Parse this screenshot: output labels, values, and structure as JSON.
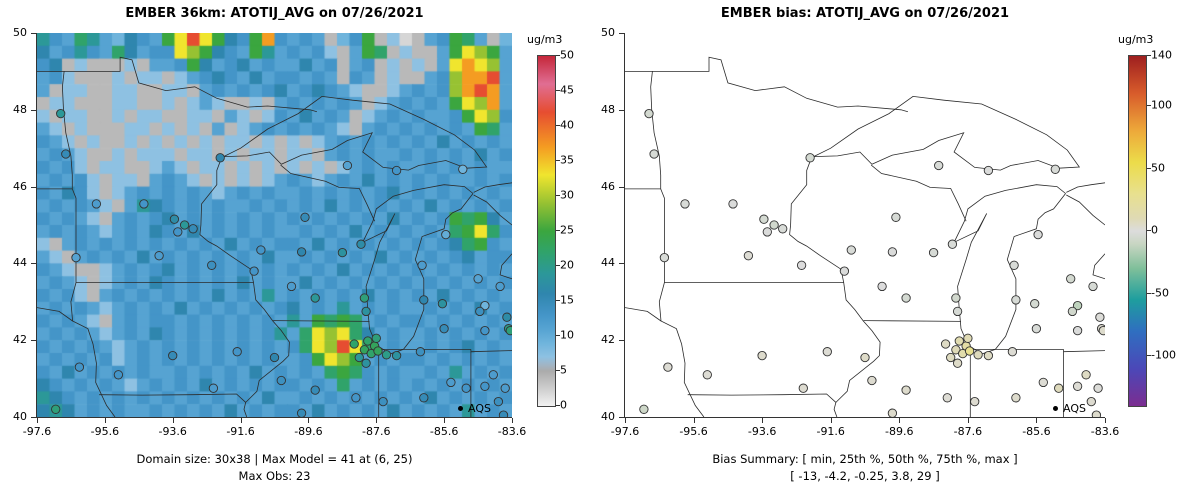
{
  "panels": {
    "left": {
      "title": "EMBER 36km: ATOTIJ_AVG on 07/26/2021",
      "caption1": "Domain size: 30x38 | Max Model = 41 at (6, 25)",
      "caption2": "Max Obs: 23",
      "colorbar_label": "ug/m3",
      "legend": "AQS"
    },
    "right": {
      "title": "EMBER bias: ATOTIJ_AVG on 07/26/2021",
      "caption1": "Bias Summary: [ min, 25th %, 50th %, 75th %, max ]",
      "caption2": "[ -13,  -4.2,  -0.25,  3.8,  29 ]",
      "colorbar_label": "ug/m3",
      "legend": "AQS"
    }
  },
  "chart_data": [
    {
      "type": "heatmap",
      "title": "EMBER 36km: ATOTIJ_AVG on 07/26/2021",
      "x_tick_labels": [
        "-97.6",
        "-95.6",
        "-93.6",
        "-91.6",
        "-89.6",
        "-87.6",
        "-85.6",
        "-83.6"
      ],
      "y_tick_labels": [
        "40",
        "42",
        "44",
        "46",
        "48",
        "50"
      ],
      "lon_range": [
        -97.6,
        -83.6
      ],
      "lat_range": [
        40,
        50
      ],
      "colorbar": {
        "label": "ug/m3",
        "range": [
          0,
          50
        ],
        "ticks": [
          50,
          45,
          40,
          35,
          30,
          25,
          20,
          15,
          10,
          5,
          0
        ]
      },
      "annotations": {
        "domain_size": "30x38",
        "max_model": 41,
        "max_model_cell": "(6, 25)",
        "max_obs": 23
      },
      "colormap": [
        [
          0,
          "#f2f2f2"
        ],
        [
          4,
          "#b9b9b9"
        ],
        [
          5,
          "#ababab"
        ],
        [
          6,
          "#9fb6c8"
        ],
        [
          7,
          "#8ec1e2"
        ],
        [
          9,
          "#6fb4dc"
        ],
        [
          11,
          "#56a3d2"
        ],
        [
          13,
          "#4495c8"
        ],
        [
          16,
          "#2f86ae"
        ],
        [
          19,
          "#2c9898"
        ],
        [
          22,
          "#30a36a"
        ],
        [
          25,
          "#3ba63f"
        ],
        [
          29,
          "#97c232"
        ],
        [
          33,
          "#f0e52e"
        ],
        [
          37,
          "#f49c22"
        ],
        [
          42,
          "#e64d31"
        ],
        [
          46,
          "#e06e93"
        ],
        [
          50,
          "#c5273a"
        ]
      ],
      "grid": {
        "ncols": 38,
        "nrows": 30,
        "note": "approximate modeled concentration field (ug/m3), row 0 = north (lat 50)",
        "value_map": {
          "-": 2,
          ".": 4,
          ",": 7,
          "a": 9,
          "b": 11,
          "c": 13,
          "d": 16,
          "e": 19,
          "f": 22,
          "g": 25,
          "h": 29,
          "y": 33,
          "o": 37,
          "r": 42,
          "p": 46
        },
        "rows": [
          "ecbfebadcbgyrygdcgocbcb.acg.,-.bcgfb.a",
          "dbcecbfdbccyhgdcbgebcbc,.bgf.,..bgyhgb",
          "cd.,...,.bbcgdbcdbcbbdbc.bc.,.,.byoyhb",
          "bc,...,.,,.,bcdcbdbccbcb.cb.,..bchoorb",
          "b.,,..,,..,,.bcbcbcdbcdcb,..,bcbchorob",
          ".,,...,,..,.,b,..,.bcbcbcb.,bcbcbgyhob",
          ",.,,..,.,,..,,.b,.,cbdbcb.,bcbcbbcgyhc",
          "b,.,...,,.,.,.b.,bcbcbcb,.bcbcbcbcbgfb",
          "cb,.,..,.,.,.,.,,.,.,.,bcbcbcbcbdbcbcb",
          "bcb,..,.,,,.,,.,.,,.,,.bcbcbbcbcbcbdbc",
          "cbc,.,,..,b,.,,.,.,.,.,.,bcbcbbcbcbcbb",
          "bcbc,.,,.bcb,.,.,.,bcb,bcbdbcbcbcbbcbc",
          "cbdc,.,bcbcbcb,bcbcbbcbcbcbcdbcbcbcbcb",
          "bcbcb,.bedcbcbcbbcbcbcbdbcbcbcbdbcbcbc",
          "cbcb,.bcbcdbcbcbcbcbcbcbcbcbdbcbcgfgdb",
          "bcbcb,bcbdcbdbcbcbcbbcbcbdbcbcbcbfgyfc",
          ",.bcbcbcbcbcbcbdbcbccbdbcbcbcbcbcdfgcb",
          "b,.bcbcbdbcbcbcbcbdbbcbcbcbdbcbcbcdbcc",
          "cb,..,bcbcdbcbcbcbcbcbcbdbcbcbcbcbcbcb",
          "bcb,.,bcbdcbcbcbdbcbbdbcbcbcbcbcbcbcbc",
          "cbc,.bcbcbcbcbdbcbebcbcbcbdbcbcbdbcbcb",
          "bcbcb,bcbcbdbcbcbcbcdbcbebcbcbbcbcbdbc",
          "cbcb,.bcbccbcbcbcbcbebgfgfbcbccbcbcbcb",
          "bcbcb,bcbdcbcbcbcbcebfyhyfdbcbbcbcbcbc",
          "cbcbcb,bcbcbcbcbcbcbcfyhryfbcbbcbcdbcb",
          "bcbcbc,bcbcbcbcbcbcbbcgyhgbcbccbcbcbcb",
          "cbdbcbcbcbbcbcbcbdbcbcbfgfcbcbbcbebcbc",
          "dcbcbcb,bcbcbdbcbcbccbcbfbcbcbcbcbcbcb",
          "edcbcbcbcbcbcbcbcbdbbcbcbcbcbcbdbcbcbc",
          "dedbcbcbbcbcbcbdbcbccbdbcbcbdbcbcbebcb"
        ]
      }
    },
    {
      "type": "scatter",
      "title": "EMBER bias: ATOTIJ_AVG on 07/26/2021",
      "x_tick_labels": [
        "-97.6",
        "-95.6",
        "-93.6",
        "-91.6",
        "-89.6",
        "-87.6",
        "-85.6",
        "-83.6"
      ],
      "y_tick_labels": [
        "40",
        "42",
        "44",
        "46",
        "48",
        "50"
      ],
      "lon_range": [
        -97.6,
        -83.6
      ],
      "lat_range": [
        40,
        50
      ],
      "colorbar": {
        "label": "ug/m3",
        "range": [
          -140,
          140
        ],
        "ticks": [
          140,
          100,
          50,
          0,
          -50,
          -100
        ]
      },
      "bias_summary": {
        "stats": [
          "min",
          "25th %",
          "50th %",
          "75th %",
          "max"
        ],
        "values": [
          -13,
          -4.2,
          -0.25,
          3.8,
          29
        ]
      },
      "colormap": [
        [
          -140,
          "#7b2d90"
        ],
        [
          -110,
          "#4b48b8"
        ],
        [
          -80,
          "#2f6fc0"
        ],
        [
          -55,
          "#1e9e9e"
        ],
        [
          -30,
          "#7fbf9a"
        ],
        [
          -10,
          "#c9d6c3"
        ],
        [
          0,
          "#dcdcdc"
        ],
        [
          10,
          "#dfdab4"
        ],
        [
          30,
          "#e8e08e"
        ],
        [
          55,
          "#ecdc4a"
        ],
        [
          80,
          "#eda93a"
        ],
        [
          110,
          "#d85c2b"
        ],
        [
          140,
          "#9e1f1f"
        ]
      ],
      "sites": "shared top-level sites list, colored by bias column"
    }
  ],
  "sites": {
    "columns": [
      "lon",
      "lat",
      "obs",
      "bias"
    ],
    "rows": [
      [
        -96.9,
        47.9,
        19,
        -5
      ],
      [
        -96.75,
        46.85,
        15,
        -3
      ],
      [
        -92.2,
        46.75,
        16,
        -4
      ],
      [
        -95.85,
        45.55,
        12,
        -2
      ],
      [
        -94.45,
        45.55,
        13,
        -1
      ],
      [
        -93.55,
        45.15,
        17,
        -4
      ],
      [
        -93.25,
        45.0,
        19,
        -6
      ],
      [
        -93.0,
        44.9,
        15,
        -2
      ],
      [
        -93.45,
        44.82,
        13,
        -1
      ],
      [
        -94.0,
        44.2,
        12,
        2
      ],
      [
        -92.45,
        43.95,
        14,
        0
      ],
      [
        -96.45,
        44.15,
        11,
        -2
      ],
      [
        -88.45,
        46.55,
        11,
        -2
      ],
      [
        -87.0,
        46.42,
        13,
        -1
      ],
      [
        -85.05,
        46.45,
        9,
        -2
      ],
      [
        -89.7,
        45.2,
        15,
        -3
      ],
      [
        -91.0,
        44.35,
        13,
        -2
      ],
      [
        -89.8,
        44.3,
        16,
        -1
      ],
      [
        -88.6,
        44.28,
        18,
        -3
      ],
      [
        -88.05,
        44.5,
        17,
        -2
      ],
      [
        -89.4,
        43.1,
        19,
        -4
      ],
      [
        -87.95,
        43.1,
        21,
        -6
      ],
      [
        -87.9,
        42.75,
        18,
        -3
      ],
      [
        -90.1,
        43.4,
        12,
        0
      ],
      [
        -91.2,
        43.8,
        13,
        -1
      ],
      [
        -96.35,
        41.3,
        13,
        2
      ],
      [
        -95.2,
        41.1,
        13,
        2
      ],
      [
        -93.6,
        41.6,
        15,
        4
      ],
      [
        -91.7,
        41.7,
        13,
        2
      ],
      [
        -90.6,
        41.55,
        16,
        5
      ],
      [
        -92.4,
        40.75,
        12,
        3
      ],
      [
        -97.05,
        40.2,
        21,
        -8
      ],
      [
        -88.25,
        41.9,
        22,
        6
      ],
      [
        -87.95,
        41.75,
        23,
        9
      ],
      [
        -87.85,
        41.98,
        22,
        12
      ],
      [
        -87.65,
        41.85,
        23,
        18
      ],
      [
        -87.6,
        42.05,
        21,
        10
      ],
      [
        -87.75,
        41.65,
        22,
        15
      ],
      [
        -87.55,
        41.72,
        23,
        29
      ],
      [
        -88.1,
        41.55,
        19,
        7
      ],
      [
        -87.9,
        41.4,
        18,
        5
      ],
      [
        -89.4,
        40.7,
        15,
        4
      ],
      [
        -88.2,
        40.5,
        13,
        2
      ],
      [
        -90.4,
        40.95,
        14,
        3
      ],
      [
        -89.8,
        40.1,
        15,
        4
      ],
      [
        -87.3,
        41.62,
        20,
        8
      ],
      [
        -87.0,
        41.6,
        18,
        6
      ],
      [
        -86.3,
        41.7,
        14,
        2
      ],
      [
        -86.2,
        40.5,
        15,
        4
      ],
      [
        -87.4,
        40.4,
        14,
        3
      ],
      [
        -85.4,
        40.9,
        12,
        2
      ],
      [
        -84.95,
        40.75,
        13,
        8
      ],
      [
        -86.25,
        43.95,
        12,
        -2
      ],
      [
        -86.2,
        43.05,
        16,
        -3
      ],
      [
        -85.65,
        42.95,
        18,
        -4
      ],
      [
        -85.55,
        44.75,
        10,
        -1
      ],
      [
        -84.6,
        43.6,
        11,
        -5
      ],
      [
        -84.4,
        42.9,
        9,
        -13
      ],
      [
        -84.55,
        42.75,
        14,
        -6
      ],
      [
        -85.6,
        42.3,
        15,
        -2
      ],
      [
        -84.4,
        42.25,
        13,
        -1
      ],
      [
        -83.7,
        42.3,
        20,
        3
      ],
      [
        -83.65,
        42.25,
        21,
        4
      ],
      [
        -83.75,
        42.6,
        17,
        1
      ],
      [
        -83.95,
        43.4,
        12,
        -3
      ],
      [
        -84.4,
        40.8,
        13,
        2
      ],
      [
        -84.0,
        40.4,
        14,
        3
      ],
      [
        -83.8,
        40.75,
        12,
        1
      ],
      [
        -83.85,
        40.05,
        15,
        4
      ],
      [
        -84.15,
        41.1,
        12,
        6
      ]
    ]
  }
}
